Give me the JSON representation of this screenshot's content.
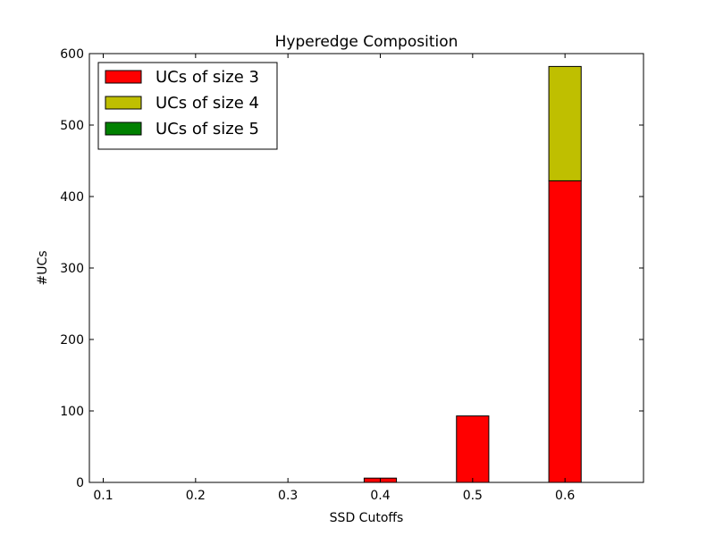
{
  "chart_data": {
    "type": "bar",
    "stacked": true,
    "title": "Hyperedge Composition",
    "xlabel": "SSD Cutoffs",
    "ylabel": "#UCs",
    "categories": [
      "0.1",
      "0.2",
      "0.3",
      "0.4",
      "0.5",
      "0.6"
    ],
    "x": [
      0.1,
      0.2,
      0.3,
      0.4,
      0.5,
      0.6
    ],
    "xlim": [
      0.085,
      0.685
    ],
    "ylim": [
      0,
      600
    ],
    "yticks": [
      0,
      100,
      200,
      300,
      400,
      500,
      600
    ],
    "bar_width": 0.035,
    "legend_position": "upper-left",
    "grid": false,
    "series": [
      {
        "name": "UCs of size 3",
        "color": "#ff0000",
        "values": [
          0,
          0,
          0,
          6,
          93,
          422
        ]
      },
      {
        "name": "UCs of size 4",
        "color": "#bfbf00",
        "values": [
          0,
          0,
          0,
          0,
          0,
          160
        ]
      },
      {
        "name": "UCs of size 5",
        "color": "#008000",
        "values": [
          0,
          0,
          0,
          0,
          0,
          0
        ]
      }
    ]
  }
}
